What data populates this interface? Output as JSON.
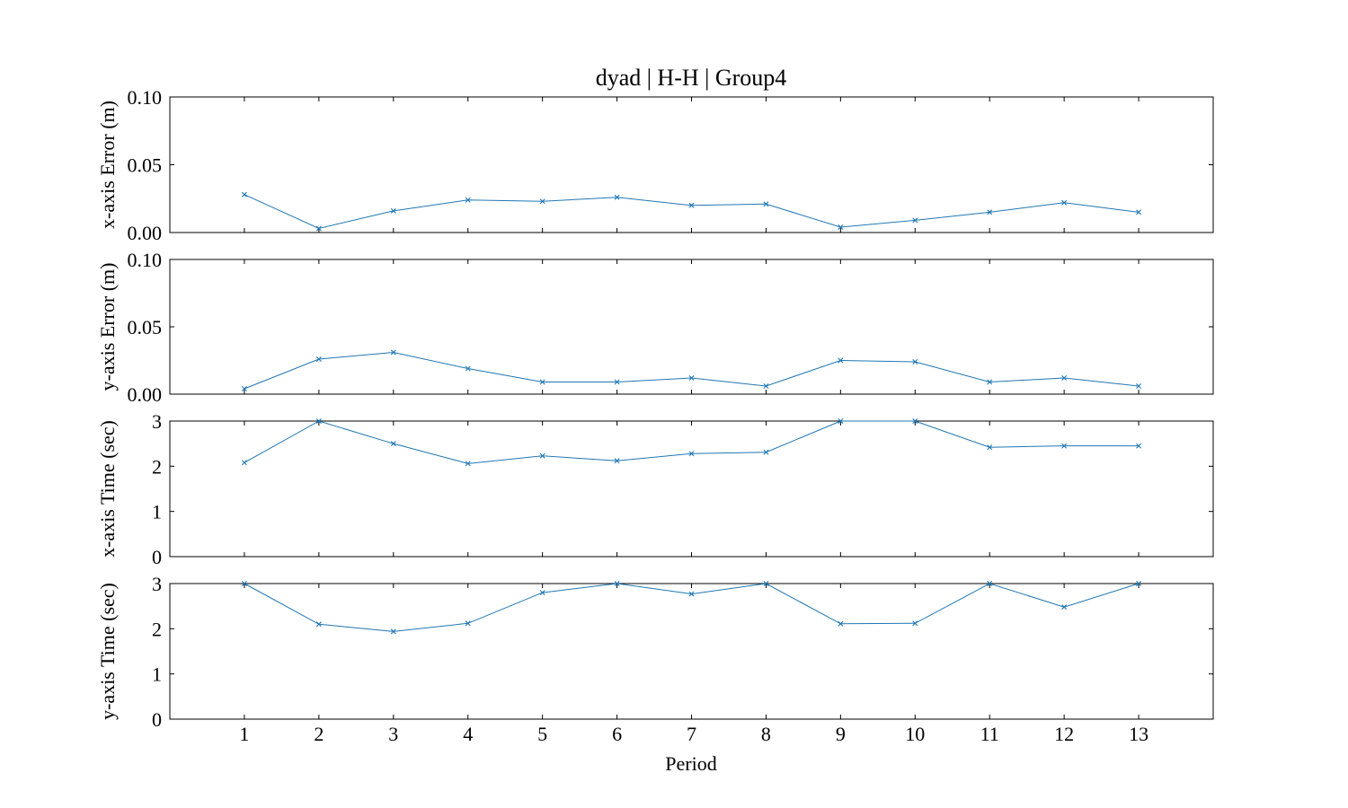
{
  "chart_data": {
    "type": "line",
    "title": "dyad | H-H | Group4",
    "xlabel": "Period",
    "x": [
      1,
      2,
      3,
      4,
      5,
      6,
      7,
      8,
      9,
      10,
      11,
      12,
      13
    ],
    "xlim": [
      0,
      14
    ],
    "line_color": "#1f77b4",
    "marker": "x",
    "grid": false,
    "subplots": [
      {
        "ylabel": "x-axis Error (m)",
        "ylim": [
          0,
          0.1
        ],
        "yticks": [
          0,
          0.05,
          0.1
        ],
        "ytick_labels": [
          "0.00",
          "0.05",
          "0.10"
        ],
        "values": [
          0.028,
          0.003,
          0.016,
          0.024,
          0.023,
          0.026,
          0.02,
          0.021,
          0.004,
          0.009,
          0.015,
          0.022,
          0.015
        ]
      },
      {
        "ylabel": "y-axis Error (m)",
        "ylim": [
          0,
          0.1
        ],
        "yticks": [
          0,
          0.05,
          0.1
        ],
        "ytick_labels": [
          "0.00",
          "0.05",
          "0.10"
        ],
        "values": [
          0.004,
          0.026,
          0.031,
          0.019,
          0.009,
          0.009,
          0.012,
          0.006,
          0.025,
          0.024,
          0.009,
          0.012,
          0.006
        ]
      },
      {
        "ylabel": "x-axis Time (sec)",
        "ylim": [
          0,
          3
        ],
        "yticks": [
          0,
          1,
          2,
          3
        ],
        "ytick_labels": [
          "0",
          "1",
          "2",
          "3"
        ],
        "values": [
          2.08,
          3.0,
          2.5,
          2.06,
          2.23,
          2.12,
          2.28,
          2.31,
          3.0,
          3.0,
          2.42,
          2.45,
          2.45
        ]
      },
      {
        "ylabel": "y-axis Time (sec)",
        "ylim": [
          0,
          3
        ],
        "yticks": [
          0,
          1,
          2,
          3
        ],
        "ytick_labels": [
          "0",
          "1",
          "2",
          "3"
        ],
        "values": [
          3.0,
          2.1,
          1.94,
          2.12,
          2.8,
          3.0,
          2.77,
          3.0,
          2.11,
          2.12,
          3.0,
          2.48,
          3.0
        ]
      }
    ]
  }
}
